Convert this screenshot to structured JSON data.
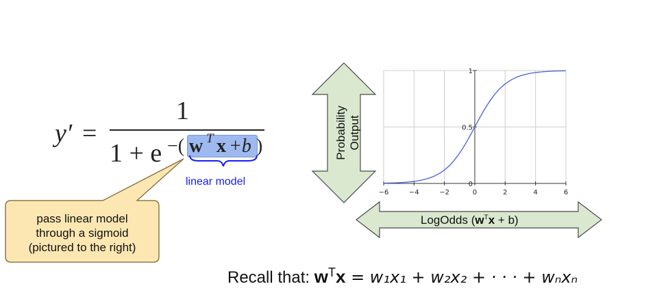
{
  "formula": {
    "lhs": "y′",
    "equals": "=",
    "numerator": "1",
    "denominator_prefix": "1 + e",
    "exponent_minus": "−(",
    "exponent_w": "w",
    "exponent_T": "T",
    "exponent_x": "x",
    "exponent_plus_b": "+b",
    "exponent_close": ")",
    "linear_model_label": "linear model"
  },
  "callout": {
    "lines": [
      "pass linear model",
      "through a sigmoid",
      "(pictured to the right)"
    ]
  },
  "vertical_arrow": {
    "line1": "Probability",
    "line2": "Output"
  },
  "horizontal_arrow": {
    "prefix": "LogOdds (",
    "w": "w",
    "T": "T",
    "x": "x",
    "suffix": " + b)"
  },
  "recall": {
    "prefix": "Recall that: ",
    "w": "w",
    "T": "T",
    "x": "x",
    "rest": " = w₁x₁ + w₂x₂ + · · · + wₙxₙ"
  },
  "colors": {
    "arrow_fill": "#d9e8cf",
    "arrow_stroke": "#4a4a4a",
    "callout_fill": "#fce7b2",
    "callout_stroke": "#8a7a4a",
    "highlight": "#9db9ef",
    "brace": "#1a1aff",
    "curve": "#4a5fd6",
    "grid": "#cccccc"
  },
  "chart_data": {
    "type": "line",
    "x": [
      -6,
      -5,
      -4,
      -3,
      -2,
      -1,
      0,
      1,
      2,
      3,
      4,
      5,
      6
    ],
    "series": [
      {
        "values": [
          0.0025,
          0.0067,
          0.018,
          0.047,
          0.119,
          0.269,
          0.5,
          0.731,
          0.881,
          0.953,
          0.982,
          0.9933,
          0.9975
        ]
      }
    ],
    "xlim": [
      -6,
      6
    ],
    "ylim": [
      0,
      1
    ],
    "x_ticks": [
      "−6",
      "−4",
      "−2",
      "0",
      "2",
      "4",
      "6"
    ],
    "y_ticks": [
      "0",
      "0.5",
      "1"
    ],
    "grid": true
  }
}
